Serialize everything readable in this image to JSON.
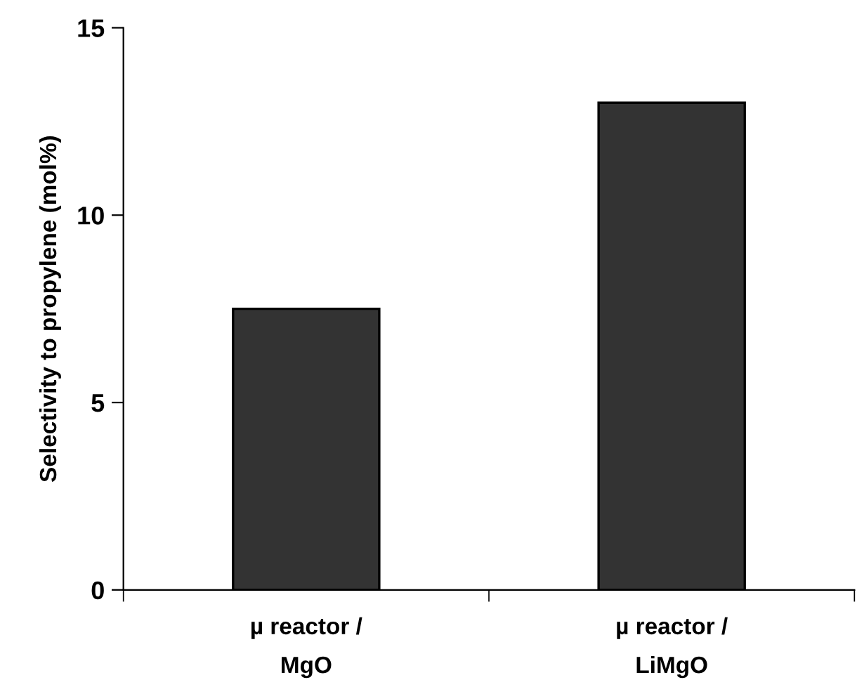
{
  "chart_data": {
    "type": "bar",
    "ylabel": "Selectivity to propylene (mol%)",
    "categories": [
      "µ reactor /\nMgO",
      "µ reactor /\nLiMgO"
    ],
    "values": [
      7.5,
      13.0
    ],
    "color": "#333333",
    "ylim": [
      0,
      15
    ],
    "yticks": [
      0,
      5,
      10,
      15
    ],
    "grid": false,
    "legend": false
  }
}
